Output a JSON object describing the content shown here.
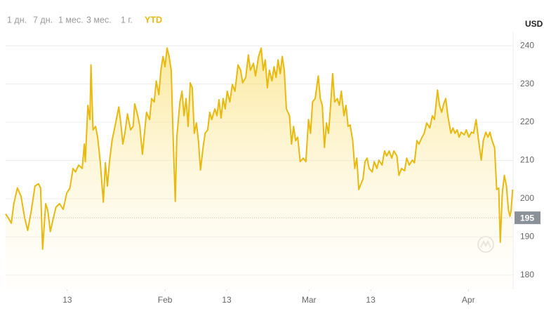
{
  "chart_data": {
    "type": "line",
    "range_buttons": [
      "1 дн.",
      "7 дн.",
      "1 мес.",
      "3 мес.",
      "1 г.",
      "YTD"
    ],
    "active_range": 5,
    "currency": "USD",
    "color": "#e8b90e",
    "grid": true,
    "reference_line": {
      "value": 195
    },
    "xlim": [
      0,
      98.7
    ],
    "xticks": [
      {
        "value": 12,
        "label": "13"
      },
      {
        "value": 31,
        "label": "Feb"
      },
      {
        "value": 43,
        "label": "13"
      },
      {
        "value": 59,
        "label": "Mar"
      },
      {
        "value": 71,
        "label": "13"
      },
      {
        "value": 90,
        "label": "Apr"
      }
    ],
    "ylim": [
      176.3,
      243.7
    ],
    "yticks": [
      180,
      190,
      200,
      210,
      220,
      230,
      240
    ],
    "x": [
      0,
      0.5,
      1.1,
      1.6,
      2.3,
      3.0,
      3.7,
      4.3,
      5.0,
      5.7,
      6.4,
      6.8,
      7.2,
      7.8,
      8.2,
      8.7,
      9.3,
      9.8,
      10.5,
      11.2,
      11.9,
      12.5,
      13.1,
      13.6,
      14.2,
      14.9,
      15.3,
      15.5,
      16.0,
      16.4,
      16.6,
      17.0,
      17.5,
      17.9,
      18.4,
      19.0,
      19.4,
      19.8,
      20.2,
      20.7,
      21.4,
      22.0,
      22.4,
      22.8,
      23.2,
      23.7,
      24.3,
      24.8,
      25.1,
      25.7,
      26.1,
      26.6,
      27.0,
      27.4,
      28.0,
      28.4,
      28.9,
      29.3,
      29.8,
      30.2,
      30.6,
      31.0,
      31.4,
      31.8,
      32.2,
      32.6,
      33.0,
      33.3,
      33.9,
      34.3,
      34.7,
      35.1,
      35.5,
      35.9,
      36.3,
      36.7,
      37.1,
      37.5,
      37.9,
      38.4,
      38.8,
      39.3,
      39.7,
      40.1,
      40.7,
      41.1,
      41.5,
      41.9,
      42.3,
      42.7,
      43.1,
      43.6,
      44.1,
      44.6,
      45.2,
      45.7,
      46.1,
      46.7,
      47.2,
      47.6,
      48.2,
      48.6,
      49.2,
      49.7,
      50.1,
      50.5,
      50.9,
      51.3,
      51.8,
      52.2,
      52.6,
      53.0,
      53.4,
      53.8,
      54.2,
      54.6,
      55.2,
      55.6,
      56.0,
      56.4,
      56.8,
      57.3,
      57.9,
      58.4,
      58.9,
      59.3,
      59.7,
      60.2,
      60.8,
      61.2,
      61.6,
      62.0,
      62.4,
      62.8,
      63.2,
      63.6,
      64.0,
      64.5,
      64.9,
      65.3,
      65.8,
      66.2,
      66.6,
      67.0,
      67.5,
      67.9,
      68.3,
      68.7,
      69.1,
      69.5,
      69.9,
      70.3,
      70.7,
      71.3,
      71.7,
      72.2,
      72.6,
      73.2,
      73.7,
      74.1,
      74.6,
      75.1,
      75.5,
      76.1,
      76.5,
      77.0,
      77.6,
      78.0,
      78.5,
      79.1,
      79.5,
      80.0,
      80.4,
      81.0,
      81.4,
      81.9,
      82.5,
      83.0,
      83.4,
      84.0,
      84.4,
      84.8,
      85.2,
      85.6,
      86.0,
      86.6,
      87.0,
      87.4,
      87.8,
      88.2,
      88.6,
      89.2,
      89.6,
      90.1,
      90.6,
      91.0,
      91.5,
      91.9,
      92.5,
      92.9,
      93.4,
      93.8,
      94.2,
      94.6,
      95.1,
      95.5,
      95.9,
      96.2,
      96.6,
      97.0,
      97.4,
      97.8,
      98.1,
      98.3,
      98.6
    ],
    "values": [
      196.0,
      195.0,
      193.6,
      198.7,
      202.8,
      200.6,
      195.0,
      191.7,
      196.9,
      203.3,
      203.9,
      202.8,
      186.8,
      198.7,
      196.9,
      191.4,
      195.0,
      197.8,
      198.7,
      197.2,
      201.5,
      202.8,
      207.9,
      207.0,
      208.8,
      207.9,
      214.3,
      209.7,
      224.4,
      220.7,
      235.0,
      218.0,
      218.9,
      216.1,
      209.7,
      199.1,
      209.4,
      203.3,
      209.7,
      215.2,
      219.8,
      224.0,
      219.8,
      214.3,
      217.1,
      222.2,
      218.0,
      218.9,
      224.8,
      221.7,
      218.9,
      211.6,
      217.1,
      222.6,
      220.7,
      226.2,
      225.3,
      230.8,
      227.2,
      233.6,
      237.2,
      234.5,
      239.4,
      237.2,
      233.6,
      215.2,
      199.3,
      216.1,
      225.3,
      228.1,
      221.7,
      226.2,
      218.9,
      230.3,
      229.0,
      217.1,
      219.8,
      215.2,
      207.5,
      213.4,
      217.1,
      218.0,
      222.6,
      220.7,
      223.5,
      221.7,
      225.9,
      221.1,
      226.2,
      223.5,
      228.1,
      225.3,
      229.9,
      228.1,
      235.0,
      233.6,
      230.3,
      231.7,
      237.6,
      233.6,
      235.4,
      232.1,
      237.2,
      239.4,
      233.6,
      236.3,
      229.0,
      233.6,
      230.8,
      234.5,
      231.7,
      236.3,
      232.7,
      237.2,
      233.6,
      223.5,
      221.7,
      214.3,
      218.9,
      215.2,
      216.1,
      209.7,
      210.6,
      209.7,
      220.7,
      217.1,
      225.3,
      226.2,
      232.1,
      226.2,
      224.4,
      213.4,
      219.8,
      217.1,
      224.4,
      232.7,
      225.3,
      226.2,
      224.4,
      228.1,
      221.7,
      224.4,
      218.9,
      219.3,
      215.2,
      207.9,
      210.6,
      202.4,
      203.9,
      205.1,
      209.7,
      210.6,
      207.9,
      207.0,
      209.7,
      207.9,
      210.1,
      208.8,
      212.5,
      211.2,
      212.5,
      210.6,
      212.5,
      211.2,
      206.1,
      207.9,
      207.3,
      210.6,
      208.8,
      210.1,
      209.4,
      215.2,
      214.3,
      216.1,
      217.1,
      219.8,
      218.5,
      221.7,
      220.7,
      228.4,
      224.4,
      222.6,
      224.8,
      226.2,
      221.7,
      217.1,
      218.5,
      217.1,
      218.0,
      216.1,
      217.4,
      216.7,
      218.0,
      216.1,
      217.4,
      217.1,
      220.7,
      216.1,
      210.1,
      215.2,
      217.4,
      216.1,
      217.4,
      215.2,
      213.4,
      202.4,
      202.8,
      188.6,
      201.5,
      206.1,
      203.3,
      196.9,
      195.4,
      196.9,
      202.4
    ]
  }
}
